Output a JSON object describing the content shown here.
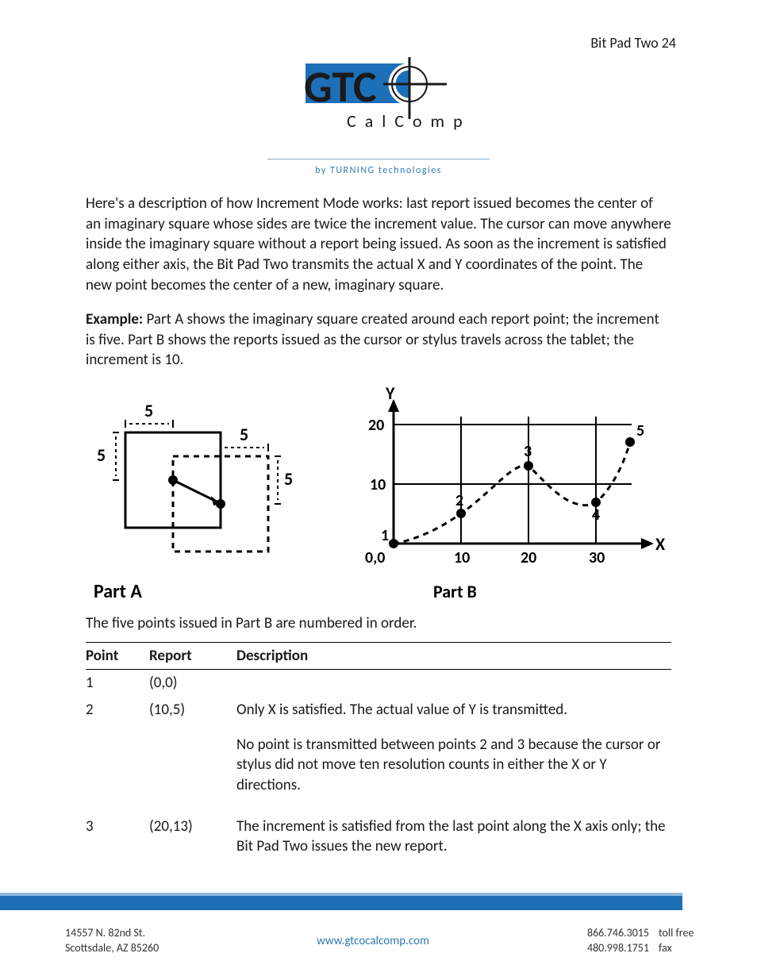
{
  "header": {
    "page_label": "Bit Pad Two 24"
  },
  "logo": {
    "brand_main": "GTC",
    "brand_sub": "C a l C o m p",
    "tagline": "by  TURNING  technologies",
    "blue": "#1d6fb8",
    "dark": "#1a1a1a"
  },
  "paragraphs": {
    "p1": "Here's a description of how Increment Mode works: last report issued becomes the center of an imaginary square whose sides are twice the increment value.  The cursor can move anywhere inside the imaginary square without a report being issued.  As soon as the increment is satisfied along either axis, the Bit Pad Two transmits the actual X and Y coordinates of the point.  The new point becomes the center of a new, imaginary square.",
    "example_label": "Example:",
    "p2": " Part A shows the imaginary square created around each report point; the increment is five.  Part B shows the reports issued as the cursor or stylus travels across the tablet; the increment is 10.",
    "p3": "The five points issued in Part B are numbered in order."
  },
  "diagram_a": {
    "title": "Part A",
    "increment_label": "5",
    "stroke": "#000000",
    "dash": "6,5",
    "point_r": 5
  },
  "diagram_b": {
    "title": "Part B",
    "x_label": "X",
    "y_label": "Y",
    "origin_label": "0,0",
    "x_ticks": [
      "10",
      "20",
      "30"
    ],
    "y_ticks": [
      "10",
      "20"
    ],
    "points": [
      {
        "n": "1",
        "x": 0,
        "y": 0
      },
      {
        "n": "2",
        "x": 10,
        "y": 5
      },
      {
        "n": "3",
        "x": 20,
        "y": 13
      },
      {
        "n": "4",
        "x": 30,
        "y": 7
      },
      {
        "n": "5",
        "x": 35,
        "y": 17
      }
    ],
    "xlim": [
      0,
      38
    ],
    "ylim": [
      0,
      24
    ],
    "stroke": "#000000",
    "dash": "6,5",
    "point_r": 5
  },
  "table": {
    "headers": [
      "Point",
      "Report",
      "Description"
    ],
    "rows": [
      {
        "point": "1",
        "report": "(0,0)",
        "desc": ""
      },
      {
        "point": "2",
        "report": "(10,5)",
        "desc": "Only X is satisfied.  The actual value of Y is transmitted.\n\nNo point is transmitted between points 2 and 3 because the cursor or stylus did not move ten resolution counts in either the X or Y directions."
      },
      {
        "point": "3",
        "report": "(20,13)",
        "desc": "The increment is satisfied from the last point along the X axis only; the Bit Pad Two issues the new report."
      }
    ]
  },
  "footer": {
    "address_line1": "14557 N. 82nd St.",
    "address_line2": "Scottsdale, AZ 85260",
    "url": "www.gtcocalcomp.com",
    "phone1": "866.746.3015",
    "phone1_label": "toll free",
    "phone2": "480.998.1751",
    "phone2_label": "fax",
    "bar_color": "#1d6fb8"
  }
}
